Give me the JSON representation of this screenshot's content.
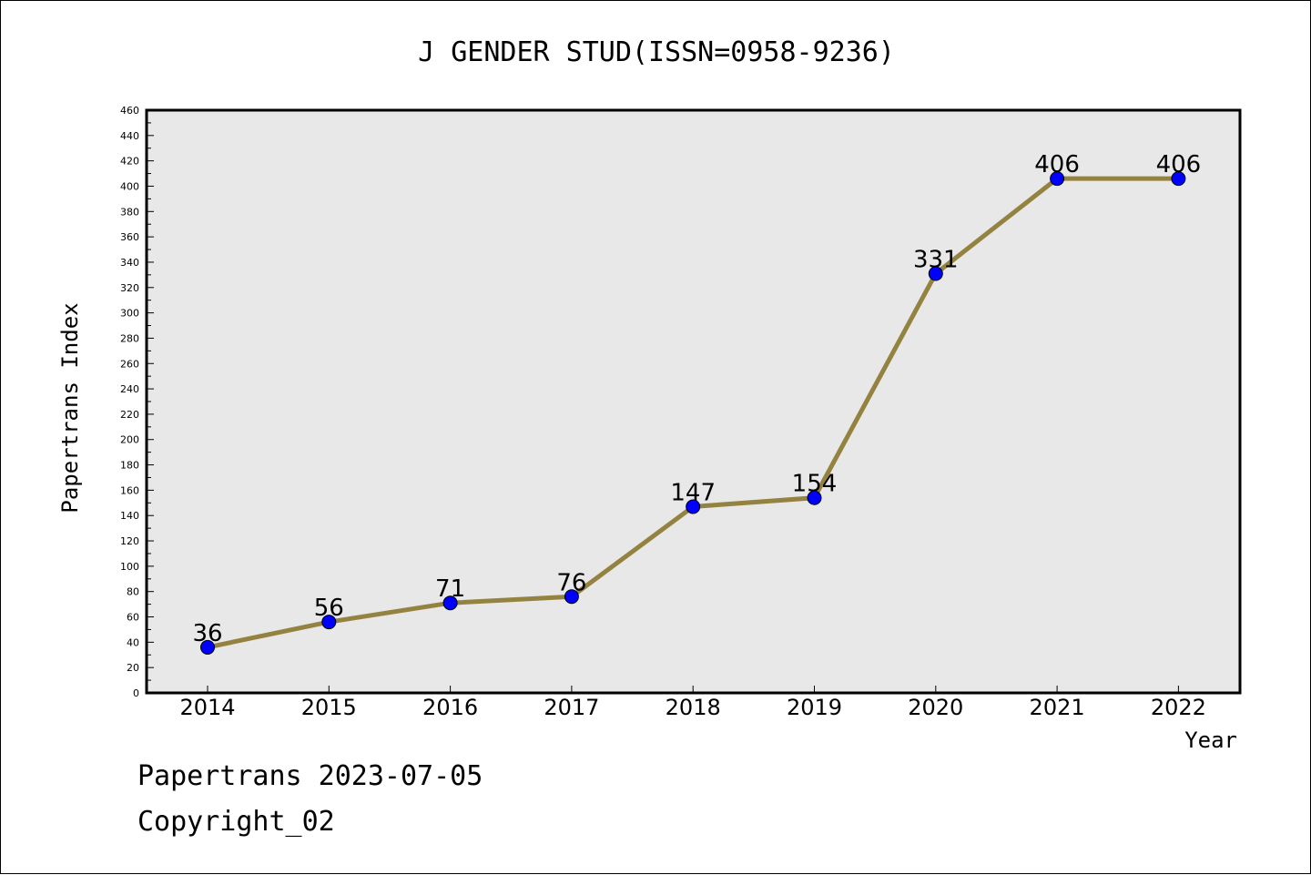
{
  "chart_data": {
    "type": "line",
    "title": "J GENDER STUD(ISSN=0958-9236)",
    "xlabel": "Year",
    "ylabel": "Papertrans Index",
    "categories": [
      "2014",
      "2015",
      "2016",
      "2017",
      "2018",
      "2019",
      "2020",
      "2021",
      "2022"
    ],
    "values": [
      36,
      56,
      71,
      76,
      147,
      154,
      331,
      406,
      406
    ],
    "ylim": [
      0,
      460
    ],
    "ytick_step": 20,
    "grid": false,
    "line_color": "#948340",
    "marker_color": "#0000ff",
    "plot_background": "#e8e8e8"
  },
  "footer": {
    "line1": "Papertrans 2023-07-05",
    "line2": "Copyright_02"
  }
}
